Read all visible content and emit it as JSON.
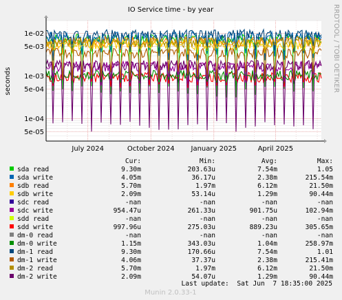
{
  "chart_data": {
    "type": "line",
    "title": "IO Service time - by year",
    "ylabel": "seconds",
    "watermark": "RRDTOOL / TOBI OETIKER",
    "y_scale": "log",
    "ylim": [
      3e-05,
      0.02
    ],
    "y_ticks": [
      {
        "value": 0.01,
        "label": "1e-02"
      },
      {
        "value": 0.005,
        "label": "5e-03"
      },
      {
        "value": 0.001,
        "label": "1e-03"
      },
      {
        "value": 0.0005,
        "label": "5e-04"
      },
      {
        "value": 0.0001,
        "label": "1e-04"
      },
      {
        "value": 5e-05,
        "label": "5e-05"
      }
    ],
    "xlim": [
      "2024-05-01",
      "2025-06-07"
    ],
    "x_ticks": [
      {
        "value": "2024-07-01",
        "label": "July 2024"
      },
      {
        "value": "2024-10-01",
        "label": "October 2024"
      },
      {
        "value": "2025-01-01",
        "label": "January 2025"
      },
      {
        "value": "2025-04-01",
        "label": "April 2025"
      }
    ],
    "grid": true,
    "legend_headers": {
      "cur": "Cur:",
      "min": "Min:",
      "avg": "Avg:",
      "max": "Max:"
    },
    "series": [
      {
        "name": "sda read",
        "color": "#00cc00",
        "cur": "9.30m",
        "min": "203.63u",
        "avg": "7.54m",
        "max": "1.05",
        "base": 0.0075,
        "dip": 0.00045
      },
      {
        "name": "sda write",
        "color": "#0066b3",
        "cur": "4.05m",
        "min": "36.17u",
        "avg": "2.38m",
        "max": "215.54m",
        "base": 0.0085,
        "dip": 0.0032
      },
      {
        "name": "sdb read",
        "color": "#ff8000",
        "cur": "5.70m",
        "min": "1.97m",
        "avg": "6.12m",
        "max": "21.50m",
        "base": 0.0065,
        "dip": 0.0045
      },
      {
        "name": "sdb write",
        "color": "#ffcc00",
        "cur": "2.09m",
        "min": "53.14u",
        "avg": "1.29m",
        "max": "90.44m",
        "base": 0.0055,
        "dip": 0.0045
      },
      {
        "name": "sdc read",
        "color": "#330099",
        "cur": "-nan",
        "min": "-nan",
        "avg": "-nan",
        "max": "-nan",
        "base": null,
        "dip": null
      },
      {
        "name": "sdc write",
        "color": "#990099",
        "cur": "954.47u",
        "min": "261.33u",
        "avg": "901.75u",
        "max": "102.94m",
        "base": 0.0017,
        "dip": 0.00085
      },
      {
        "name": "sdd read",
        "color": "#ccff00",
        "cur": "-nan",
        "min": "-nan",
        "avg": "-nan",
        "max": "-nan",
        "base": null,
        "dip": null
      },
      {
        "name": "sdd write",
        "color": "#ff0000",
        "cur": "997.96u",
        "min": "275.03u",
        "avg": "889.23u",
        "max": "305.65m",
        "base": 0.00095,
        "dip": 0.00075
      },
      {
        "name": "dm-0 read",
        "color": "#808080",
        "cur": "-nan",
        "min": "-nan",
        "avg": "-nan",
        "max": "-nan",
        "base": null,
        "dip": null
      },
      {
        "name": "dm-0 write",
        "color": "#008f00",
        "cur": "1.15m",
        "min": "343.03u",
        "avg": "1.04m",
        "max": "258.97m",
        "base": 0.00105,
        "dip": 0.0009
      },
      {
        "name": "dm-1 read",
        "color": "#00487d",
        "cur": "9.30m",
        "min": "170.66u",
        "avg": "7.54m",
        "max": "1.01",
        "base": 0.0095,
        "dip": 0.0045
      },
      {
        "name": "dm-1 write",
        "color": "#b35a00",
        "cur": "4.06m",
        "min": "37.37u",
        "avg": "2.38m",
        "max": "215.41m",
        "base": 0.0035,
        "dip": 0.0011
      },
      {
        "name": "dm-2 read",
        "color": "#b38f00",
        "cur": "5.70m",
        "min": "1.97m",
        "avg": "6.12m",
        "max": "21.50m",
        "base": 0.0062,
        "dip": 0.0048
      },
      {
        "name": "dm-2 write",
        "color": "#6b006b",
        "cur": "2.09m",
        "min": "54.07u",
        "avg": "1.29m",
        "max": "90.44m",
        "base": 0.0018,
        "dip": 7e-05
      }
    ],
    "last_update": "Last update:  Sat Jun  7 18:35:00 2025",
    "footer": "Munin 2.0.33-1"
  }
}
